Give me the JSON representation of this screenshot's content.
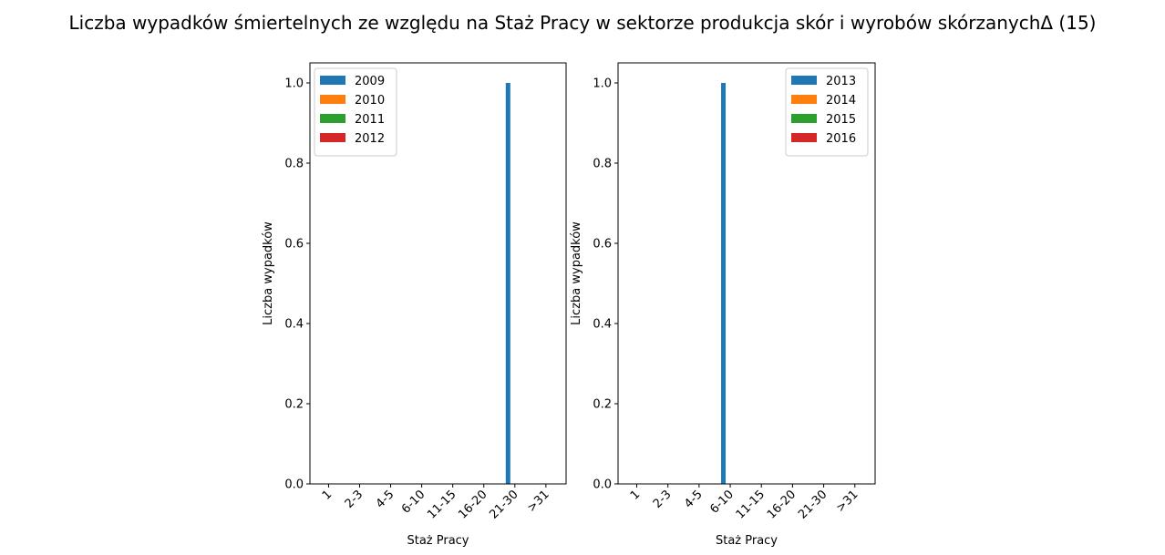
{
  "chart_data": {
    "title": "Liczba wypadków śmiertelnych ze względu na Staż Pracy w sektorze produkcja skór i wyrobów skórzanychΔ (15)",
    "type": "bar",
    "categories": [
      "1",
      "2-3",
      "4-5",
      "6-10",
      "11-15",
      "16-20",
      "21-30",
      ">31"
    ],
    "panels": [
      {
        "xlabel": "Staż Pracy",
        "ylabel": "Liczba wypadków",
        "ylim": [
          0,
          1.05
        ],
        "yticks": [
          "0.0",
          "0.2",
          "0.4",
          "0.6",
          "0.8",
          "1.0"
        ],
        "legend_position": "upper-left",
        "series": [
          {
            "name": "2009",
            "color": "#1f77b4",
            "values": [
              0,
              0,
              0,
              0,
              0,
              0,
              1,
              0
            ]
          },
          {
            "name": "2010",
            "color": "#ff7f0e",
            "values": [
              0,
              0,
              0,
              0,
              0,
              0,
              0,
              0
            ]
          },
          {
            "name": "2011",
            "color": "#2ca02c",
            "values": [
              0,
              0,
              0,
              0,
              0,
              0,
              0,
              0
            ]
          },
          {
            "name": "2012",
            "color": "#d62728",
            "values": [
              0,
              0,
              0,
              0,
              0,
              0,
              0,
              0
            ]
          }
        ]
      },
      {
        "xlabel": "Staż Pracy",
        "ylabel": "Liczba wypadków",
        "ylim": [
          0,
          1.05
        ],
        "yticks": [
          "0.0",
          "0.2",
          "0.4",
          "0.6",
          "0.8",
          "1.0"
        ],
        "legend_position": "upper-right",
        "series": [
          {
            "name": "2013",
            "color": "#1f77b4",
            "values": [
              0,
              0,
              0,
              1,
              0,
              0,
              0,
              0
            ]
          },
          {
            "name": "2014",
            "color": "#ff7f0e",
            "values": [
              0,
              0,
              0,
              0,
              0,
              0,
              0,
              0
            ]
          },
          {
            "name": "2015",
            "color": "#2ca02c",
            "values": [
              0,
              0,
              0,
              0,
              0,
              0,
              0,
              0
            ]
          },
          {
            "name": "2016",
            "color": "#d62728",
            "values": [
              0,
              0,
              0,
              0,
              0,
              0,
              0,
              0
            ]
          }
        ]
      }
    ]
  }
}
